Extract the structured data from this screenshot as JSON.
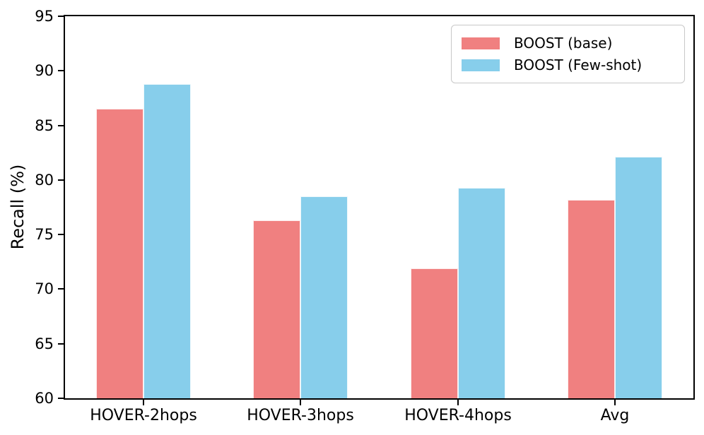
{
  "chart_data": {
    "type": "bar",
    "title": "",
    "xlabel": "",
    "ylabel": "Recall (%)",
    "categories": [
      "HOVER-2hops",
      "HOVER-3hops",
      "HOVER-4hops",
      "Avg"
    ],
    "series": [
      {
        "name": "BOOST (base)",
        "color": "#F08080",
        "values": [
          86.5,
          76.3,
          71.9,
          78.2
        ]
      },
      {
        "name": "BOOST (Few-shot)",
        "color": "#87CEEB",
        "values": [
          88.8,
          78.5,
          79.3,
          82.1
        ]
      }
    ],
    "ylim": [
      60,
      95
    ],
    "yticks": [
      60,
      65,
      70,
      75,
      80,
      85,
      90,
      95
    ],
    "grid": false,
    "legend_position": "upper right",
    "bar_width_fraction": 0.3
  }
}
